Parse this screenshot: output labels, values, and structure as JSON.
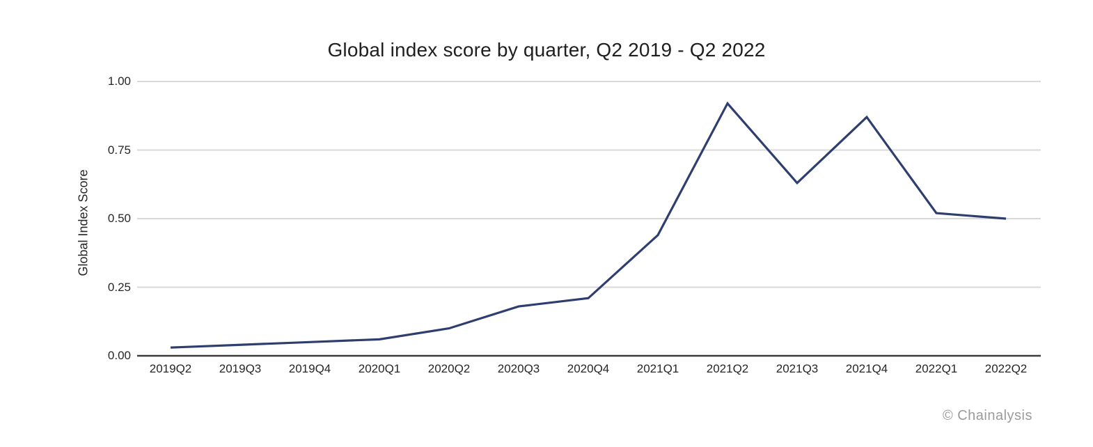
{
  "figure": {
    "background": "#ffffff"
  },
  "watermark": {
    "text": "© Chainalysis",
    "color": "#9b9b9b"
  },
  "colors": {
    "line": "#2e3e6e",
    "gridline": "#d9d9d9",
    "axis": "#3c3c3c",
    "text": "#262626",
    "title_text": "#1f1f1f"
  },
  "chart_data": {
    "type": "line",
    "title": "Global index score by quarter, Q2 2019 - Q2 2022",
    "xlabel": "",
    "ylabel": "Global Index Score",
    "categories": [
      "2019Q2",
      "2019Q3",
      "2019Q4",
      "2020Q1",
      "2020Q2",
      "2020Q3",
      "2020Q4",
      "2021Q1",
      "2021Q2",
      "2021Q3",
      "2021Q4",
      "2022Q1",
      "2022Q2"
    ],
    "series": [
      {
        "name": "Global index score",
        "values": [
          0.03,
          0.04,
          0.05,
          0.06,
          0.1,
          0.18,
          0.21,
          0.44,
          0.92,
          0.63,
          0.87,
          0.52,
          0.5
        ]
      }
    ],
    "ylim": [
      0,
      1
    ],
    "yticks": [
      0,
      0.25,
      0.5,
      0.75,
      1
    ],
    "ytick_labels": [
      "0.00",
      "0.25",
      "0.50",
      "0.75",
      "1.00"
    ],
    "grid": "horizontal",
    "legend": "none",
    "line_width": 3.2
  }
}
